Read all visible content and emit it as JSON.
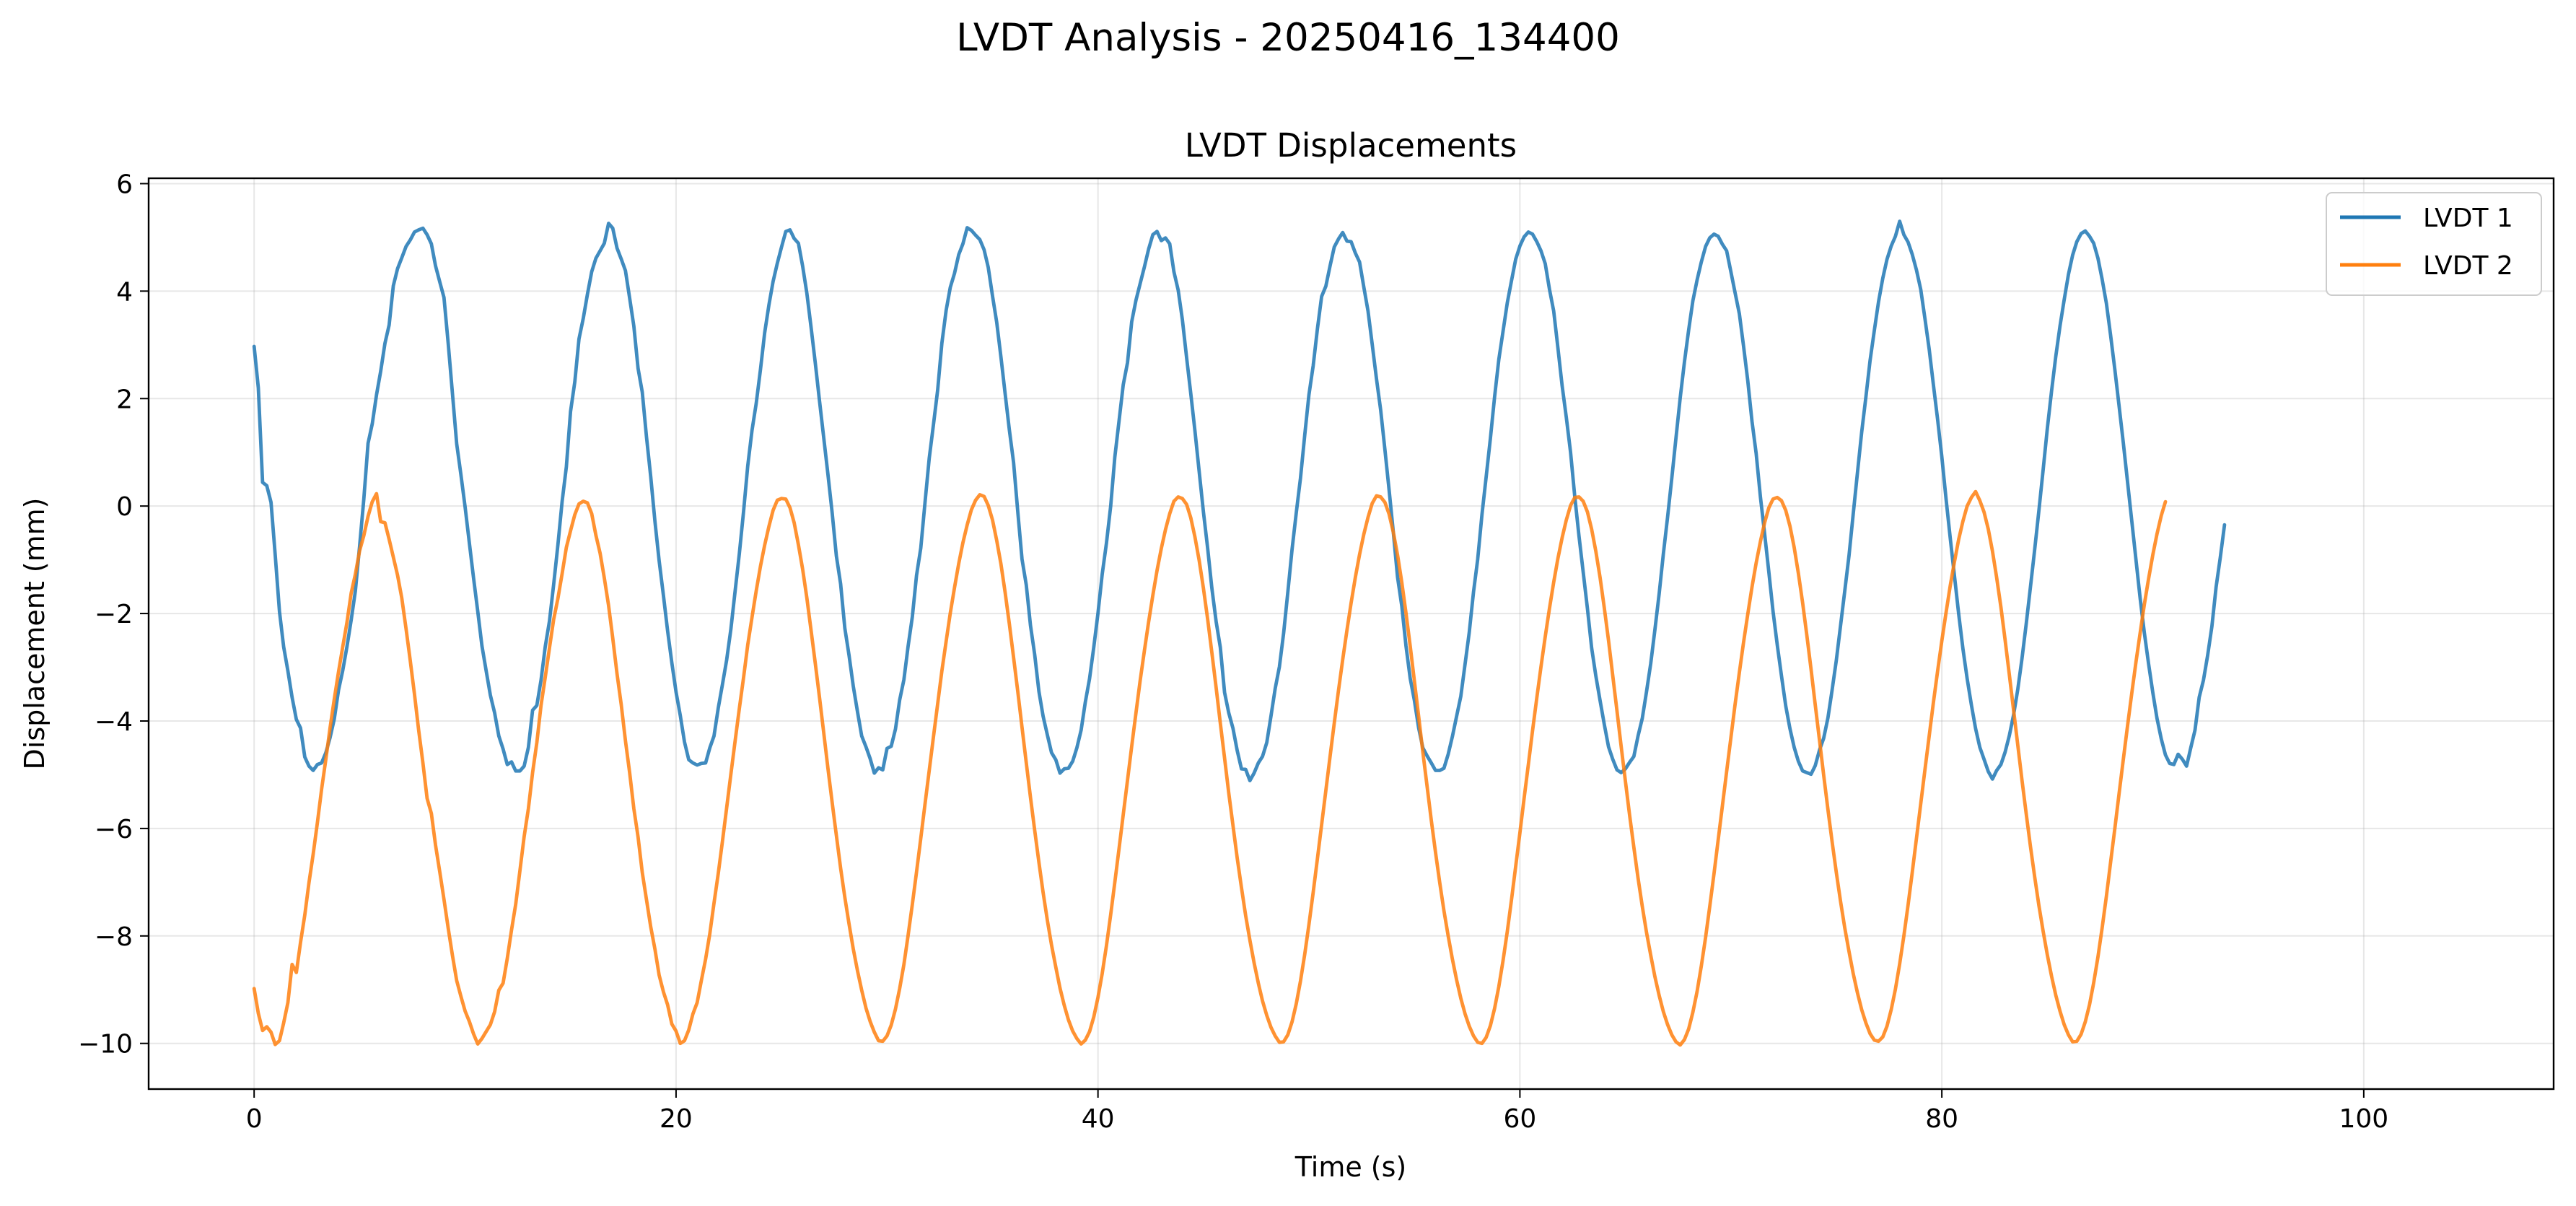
{
  "figure": {
    "suptitle": "LVDT Analysis - 20250416_134400"
  },
  "chart_data": {
    "type": "line",
    "title": "LVDT Displacements",
    "xlabel": "Time (s)",
    "ylabel": "Displacement (mm)",
    "xlim": [
      -5,
      109
    ],
    "ylim": [
      -10.85,
      6.1
    ],
    "xticks": [
      0,
      20,
      40,
      60,
      80,
      100
    ],
    "xtick_labels": [
      "0",
      "20",
      "40",
      "60",
      "80",
      "100"
    ],
    "yticks": [
      -10,
      -8,
      -6,
      -4,
      -2,
      0,
      2,
      4,
      6
    ],
    "ytick_labels": [
      "−10",
      "−8",
      "−6",
      "−4",
      "−2",
      "0",
      "2",
      "4",
      "6"
    ],
    "grid": true,
    "legend_position": "top-right",
    "x_range": [
      0,
      103.6
    ],
    "series": [
      {
        "name": "LVDT 1",
        "color": "#1f77b4",
        "sample_interval_s": 0.2,
        "values": [
          2.97,
          2.2,
          0.44,
          0.38,
          0.07,
          -0.91,
          -1.96,
          -2.62,
          -3.07,
          -3.56,
          -3.97,
          -4.13,
          -4.67,
          -4.84,
          -4.92,
          -4.81,
          -4.78,
          -4.59,
          -4.31,
          -3.96,
          -3.43,
          -3.06,
          -2.62,
          -2.12,
          -1.58,
          -0.74,
          0.13,
          1.17,
          1.53,
          2.07,
          2.51,
          3.03,
          3.37,
          4.1,
          4.42,
          4.62,
          4.83,
          4.95,
          5.1,
          5.14,
          5.17,
          5.05,
          4.88,
          4.47,
          4.17,
          3.88,
          3.02,
          2.1,
          1.16,
          0.59,
          -0.02,
          -0.68,
          -1.33,
          -1.96,
          -2.6,
          -3.07,
          -3.52,
          -3.85,
          -4.28,
          -4.52,
          -4.81,
          -4.76,
          -4.93,
          -4.93,
          -4.84,
          -4.49,
          -3.8,
          -3.71,
          -3.24,
          -2.61,
          -2.14,
          -1.46,
          -0.72,
          0.08,
          0.73,
          1.76,
          2.31,
          3.11,
          3.49,
          3.94,
          4.36,
          4.61,
          4.75,
          4.89,
          5.26,
          5.17,
          4.8,
          4.6,
          4.38,
          3.87,
          3.35,
          2.56,
          2.12,
          1.28,
          0.55,
          -0.29,
          -1.02,
          -1.66,
          -2.32,
          -2.92,
          -3.46,
          -3.9,
          -4.39,
          -4.72,
          -4.78,
          -4.82,
          -4.79,
          -4.78,
          -4.5,
          -4.28,
          -3.76,
          -3.32,
          -2.86,
          -2.29,
          -1.58,
          -0.89,
          -0.1,
          0.75,
          1.41,
          1.91,
          2.54,
          3.22,
          3.74,
          4.18,
          4.52,
          4.82,
          5.11,
          5.14,
          4.98,
          4.89,
          4.47,
          3.96,
          3.33,
          2.66,
          1.96,
          1.27,
          0.59,
          -0.13,
          -0.93,
          -1.45,
          -2.27,
          -2.78,
          -3.35,
          -3.83,
          -4.28,
          -4.48,
          -4.7,
          -4.97,
          -4.87,
          -4.91,
          -4.51,
          -4.47,
          -4.15,
          -3.61,
          -3.23,
          -2.61,
          -2.06,
          -1.29,
          -0.78,
          0.06,
          0.89,
          1.51,
          2.16,
          3.03,
          3.64,
          4.07,
          4.33,
          4.68,
          4.88,
          5.18,
          5.13,
          5.04,
          4.96,
          4.77,
          4.44,
          3.91,
          3.42,
          2.77,
          2.09,
          1.41,
          0.81,
          -0.12,
          -0.99,
          -1.47,
          -2.22,
          -2.76,
          -3.45,
          -3.91,
          -4.26,
          -4.59,
          -4.72,
          -4.97,
          -4.89,
          -4.88,
          -4.75,
          -4.5,
          -4.17,
          -3.65,
          -3.21,
          -2.63,
          -1.99,
          -1.27,
          -0.69,
          -0.01,
          0.91,
          1.59,
          2.26,
          2.67,
          3.43,
          3.83,
          4.14,
          4.45,
          4.78,
          5.05,
          5.11,
          4.94,
          4.99,
          4.88,
          4.36,
          4.02,
          3.47,
          2.76,
          2.09,
          1.39,
          0.63,
          -0.11,
          -0.79,
          -1.53,
          -2.15,
          -2.63,
          -3.47,
          -3.85,
          -4.14,
          -4.55,
          -4.89,
          -4.9,
          -5.11,
          -4.97,
          -4.78,
          -4.66,
          -4.4,
          -3.91,
          -3.4,
          -2.99,
          -2.37,
          -1.6,
          -0.81,
          -0.12,
          0.52,
          1.32,
          2.07,
          2.61,
          3.29,
          3.9,
          4.09,
          4.47,
          4.82,
          4.97,
          5.09,
          4.93,
          4.92,
          4.71,
          4.54,
          4.08,
          3.63,
          3.01,
          2.37,
          1.79,
          1.05,
          0.3,
          -0.49,
          -1.32,
          -1.86,
          -2.6,
          -3.21,
          -3.62,
          -4.13,
          -4.5,
          -4.65,
          -4.78,
          -4.92,
          -4.92,
          -4.88,
          -4.62,
          -4.29,
          -3.91,
          -3.54,
          -2.94,
          -2.35,
          -1.6,
          -0.99,
          -0.16,
          0.54,
          1.26,
          2.03,
          2.73,
          3.25,
          3.78,
          4.19,
          4.59,
          4.84,
          5.01,
          5.1,
          5.06,
          4.92,
          4.75,
          4.51,
          4.04,
          3.63,
          2.95,
          2.24,
          1.65,
          1,
          0.18,
          -0.56,
          -1.23,
          -1.91,
          -2.64,
          -3.16,
          -3.62,
          -4.06,
          -4.48,
          -4.71,
          -4.91,
          -4.96,
          -4.89,
          -4.77,
          -4.66,
          -4.28,
          -3.95,
          -3.46,
          -2.93,
          -2.3,
          -1.63,
          -0.89,
          -0.2,
          0.52,
          1.27,
          2.02,
          2.68,
          3.28,
          3.82,
          4.21,
          4.54,
          4.83,
          4.99,
          5.06,
          5.02,
          4.87,
          4.75,
          4.36,
          3.97,
          3.58,
          2.98,
          2.33,
          1.58,
          0.98,
          0.17,
          -0.51,
          -1.23,
          -1.96,
          -2.59,
          -3.16,
          -3.72,
          -4.14,
          -4.49,
          -4.75,
          -4.93,
          -4.96,
          -4.99,
          -4.83,
          -4.54,
          -4.32,
          -3.94,
          -3.42,
          -2.87,
          -2.22,
          -1.58,
          -0.92,
          -0.15,
          0.62,
          1.37,
          2.03,
          2.71,
          3.27,
          3.8,
          4.24,
          4.59,
          4.84,
          5.02,
          5.3,
          5.05,
          4.91,
          4.68,
          4.39,
          4.03,
          3.49,
          2.92,
          2.26,
          1.61,
          0.92,
          0.13,
          -0.6,
          -1.31,
          -2.01,
          -2.66,
          -3.21,
          -3.7,
          -4.14,
          -4.49,
          -4.71,
          -4.94,
          -5.08,
          -4.92,
          -4.81,
          -4.58,
          -4.27,
          -3.89,
          -3.41,
          -2.84,
          -2.19,
          -1.51,
          -0.81,
          -0.09,
          0.67,
          1.44,
          2.14,
          2.78,
          3.35,
          3.84,
          4.31,
          4.67,
          4.92,
          5.07,
          5.12,
          5.02,
          4.89,
          4.61,
          4.22,
          3.77,
          3.18,
          2.54,
          1.87,
          1.18,
          0.46,
          -0.27,
          -0.99,
          -1.72,
          -2.36,
          -2.94,
          -3.47,
          -3.95,
          -4.33,
          -4.63,
          -4.79,
          -4.81,
          -4.62,
          -4.71,
          -4.84,
          -4.5,
          -4.17,
          -3.56,
          -3.24,
          -2.78,
          -2.24,
          -1.51,
          -0.95,
          -0.35
        ]
      },
      {
        "name": "LVDT 2",
        "color": "#ff7f0e",
        "sample_interval_s": 0.2,
        "values": [
          -8.98,
          -9.44,
          -9.76,
          -9.69,
          -9.79,
          -10.02,
          -9.95,
          -9.62,
          -9.24,
          -8.53,
          -8.68,
          -8.12,
          -7.61,
          -7.01,
          -6.48,
          -5.89,
          -5.27,
          -4.71,
          -4.13,
          -3.59,
          -3.09,
          -2.62,
          -2.17,
          -1.62,
          -1.27,
          -0.83,
          -0.55,
          -0.19,
          0.08,
          0.23,
          -0.29,
          -0.31,
          -0.62,
          -0.95,
          -1.29,
          -1.71,
          -2.28,
          -2.87,
          -3.5,
          -4.17,
          -4.78,
          -5.44,
          -5.72,
          -6.31,
          -6.81,
          -7.32,
          -7.86,
          -8.36,
          -8.83,
          -9.12,
          -9.4,
          -9.59,
          -9.82,
          -10.01,
          -9.91,
          -9.78,
          -9.65,
          -9.41,
          -9.01,
          -8.88,
          -8.42,
          -7.89,
          -7.41,
          -6.78,
          -6.15,
          -5.63,
          -4.96,
          -4.4,
          -3.71,
          -3.18,
          -2.64,
          -2.11,
          -1.72,
          -1.26,
          -0.77,
          -0.46,
          -0.16,
          0.04,
          0.09,
          0.06,
          -0.14,
          -0.54,
          -0.88,
          -1.34,
          -1.85,
          -2.46,
          -3.12,
          -3.69,
          -4.37,
          -4.96,
          -5.63,
          -6.16,
          -6.82,
          -7.33,
          -7.83,
          -8.25,
          -8.73,
          -9.04,
          -9.28,
          -9.64,
          -9.77,
          -10.0,
          -9.95,
          -9.75,
          -9.45,
          -9.24,
          -8.83,
          -8.43,
          -7.96,
          -7.39,
          -6.84,
          -6.24,
          -5.61,
          -4.99,
          -4.37,
          -3.77,
          -3.19,
          -2.58,
          -2.07,
          -1.58,
          -1.12,
          -0.73,
          -0.38,
          -0.08,
          0.11,
          0.14,
          0.13,
          -0.03,
          -0.31,
          -0.72,
          -1.17,
          -1.71,
          -2.31,
          -2.93,
          -3.56,
          -4.22,
          -4.88,
          -5.52,
          -6.13,
          -6.74,
          -7.28,
          -7.78,
          -8.24,
          -8.65,
          -9.01,
          -9.34,
          -9.59,
          -9.79,
          -9.95,
          -9.96,
          -9.86,
          -9.66,
          -9.36,
          -8.98,
          -8.53,
          -7.99,
          -7.41,
          -6.81,
          -6.18,
          -5.55,
          -4.92,
          -4.3,
          -3.68,
          -3.07,
          -2.52,
          -1.99,
          -1.52,
          -1.07,
          -0.68,
          -0.35,
          -0.07,
          0.11,
          0.21,
          0.18,
          0.01,
          -0.26,
          -0.64,
          -1.08,
          -1.61,
          -2.2,
          -2.82,
          -3.46,
          -4.12,
          -4.78,
          -5.42,
          -6.03,
          -6.63,
          -7.19,
          -7.71,
          -8.17,
          -8.58,
          -8.97,
          -9.29,
          -9.56,
          -9.77,
          -9.91,
          -10.01,
          -9.94,
          -9.78,
          -9.51,
          -9.14,
          -8.7,
          -8.18,
          -7.61,
          -7.0,
          -6.37,
          -5.74,
          -5.1,
          -4.47,
          -3.85,
          -3.25,
          -2.69,
          -2.16,
          -1.66,
          -1.2,
          -0.79,
          -0.44,
          -0.14,
          0.09,
          0.17,
          0.14,
          0.03,
          -0.22,
          -0.58,
          -1.02,
          -1.53,
          -2.11,
          -2.73,
          -3.38,
          -4.04,
          -4.69,
          -5.34,
          -5.95,
          -6.55,
          -7.1,
          -7.62,
          -8.08,
          -8.5,
          -8.88,
          -9.21,
          -9.48,
          -9.7,
          -9.86,
          -9.98,
          -9.97,
          -9.84,
          -9.6,
          -9.26,
          -8.84,
          -8.34,
          -7.79,
          -7.19,
          -6.57,
          -5.93,
          -5.3,
          -4.66,
          -4.04,
          -3.43,
          -2.86,
          -2.31,
          -1.8,
          -1.33,
          -0.9,
          -0.53,
          -0.21,
          0.05,
          0.19,
          0.17,
          0.07,
          -0.15,
          -0.49,
          -0.91,
          -1.42,
          -1.99,
          -2.61,
          -3.26,
          -3.92,
          -4.58,
          -5.22,
          -5.85,
          -6.44,
          -7.01,
          -7.53,
          -8.0,
          -8.43,
          -8.82,
          -9.16,
          -9.45,
          -9.68,
          -9.86,
          -9.98,
          -10.0,
          -9.89,
          -9.67,
          -9.35,
          -8.94,
          -8.46,
          -7.92,
          -7.33,
          -6.71,
          -6.08,
          -5.44,
          -4.81,
          -4.18,
          -3.57,
          -2.99,
          -2.43,
          -1.91,
          -1.42,
          -0.98,
          -0.59,
          -0.26,
          0.01,
          0.16,
          0.17,
          0.09,
          -0.11,
          -0.43,
          -0.84,
          -1.33,
          -1.89,
          -2.5,
          -3.15,
          -3.81,
          -4.47,
          -5.12,
          -5.75,
          -6.35,
          -6.92,
          -7.45,
          -7.93,
          -8.36,
          -8.76,
          -9.11,
          -9.41,
          -9.65,
          -9.84,
          -9.97,
          -10.03,
          -9.93,
          -9.73,
          -9.42,
          -9.03,
          -8.56,
          -8.03,
          -7.45,
          -6.84,
          -6.21,
          -5.57,
          -4.94,
          -4.31,
          -3.69,
          -3.1,
          -2.54,
          -2.01,
          -1.51,
          -1.06,
          -0.66,
          -0.31,
          -0.03,
          0.13,
          0.16,
          0.1,
          -0.08,
          -0.37,
          -0.77,
          -1.25,
          -1.8,
          -2.4,
          -3.04,
          -3.7,
          -4.36,
          -5.01,
          -5.65,
          -6.25,
          -6.82,
          -7.36,
          -7.85,
          -8.29,
          -8.7,
          -9.06,
          -9.37,
          -9.62,
          -9.82,
          -9.94,
          -9.96,
          -9.88,
          -9.68,
          -9.37,
          -8.99,
          -8.52,
          -8.0,
          -7.42,
          -6.81,
          -6.18,
          -5.54,
          -4.91,
          -4.28,
          -3.66,
          -3.07,
          -2.51,
          -1.98,
          -1.48,
          -1.03,
          -0.62,
          -0.28,
          0.0,
          0.16,
          0.27,
          0.1,
          -0.11,
          -0.43,
          -0.84,
          -1.33,
          -1.88,
          -2.49,
          -3.14,
          -3.79,
          -4.45,
          -5.1,
          -5.73,
          -6.33,
          -6.9,
          -7.43,
          -7.91,
          -8.35,
          -8.75,
          -9.1,
          -9.4,
          -9.65,
          -9.84,
          -9.97,
          -9.96,
          -9.83,
          -9.6,
          -9.28,
          -8.87,
          -8.39,
          -7.85,
          -7.26,
          -6.63,
          -6.0,
          -5.36,
          -4.72,
          -4.1,
          -3.49,
          -2.91,
          -2.36,
          -1.83,
          -1.35,
          -0.91,
          -0.52,
          -0.18,
          0.08
        ]
      }
    ]
  }
}
